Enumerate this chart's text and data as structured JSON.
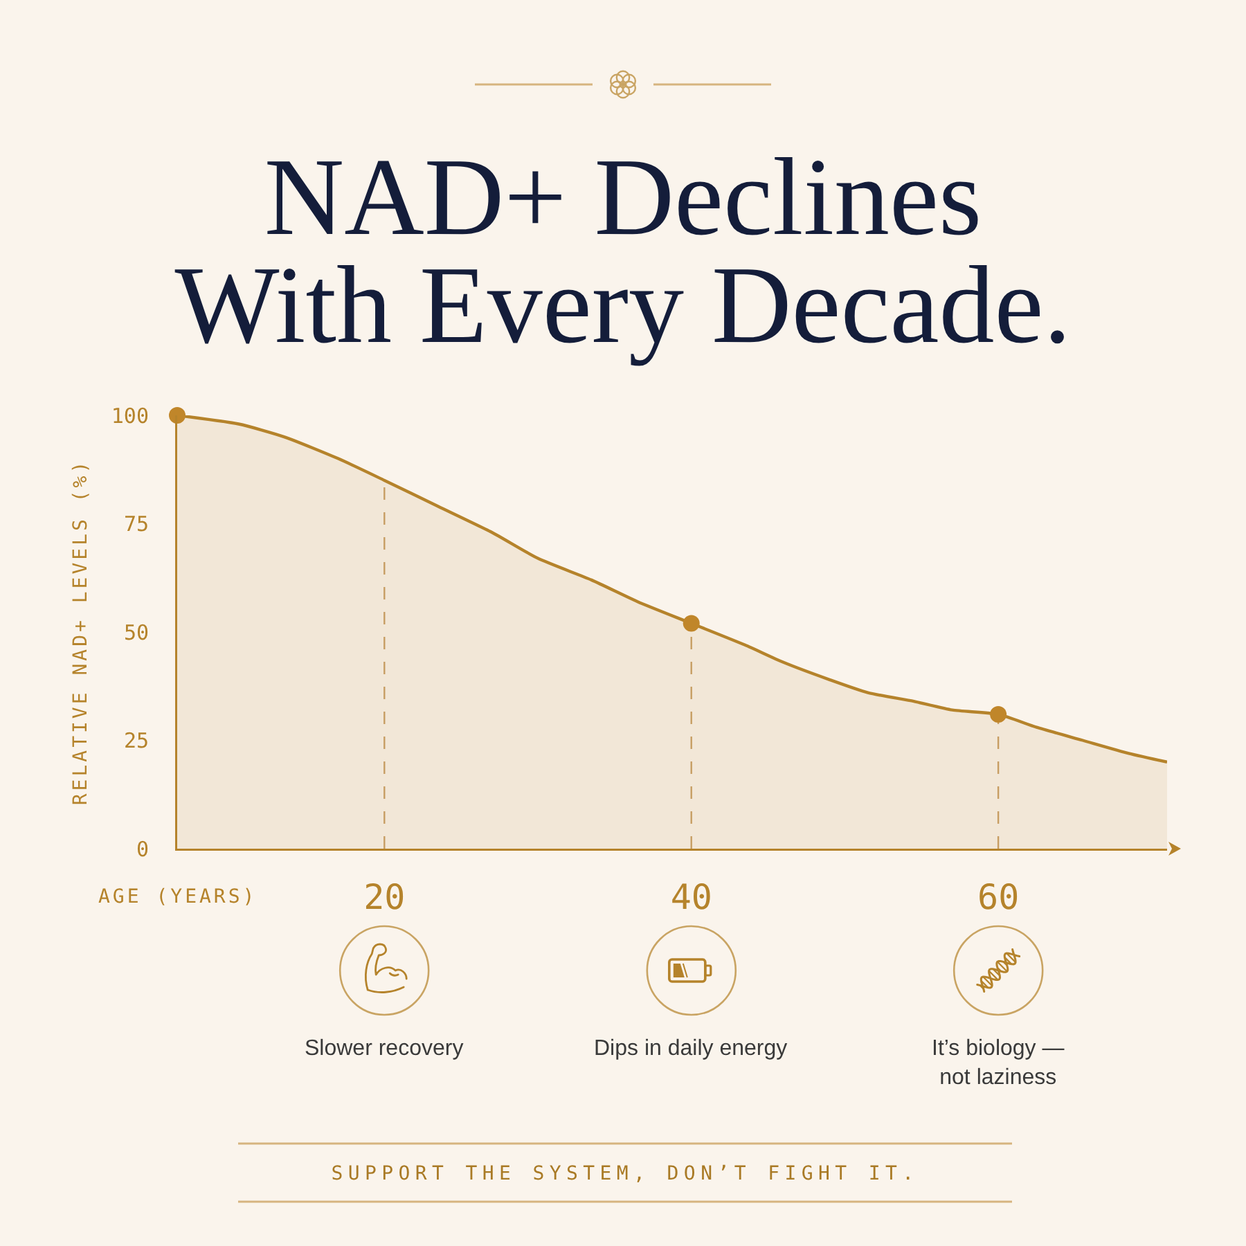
{
  "chart_data": {
    "type": "area",
    "title": "NAD+ Declines\nWith Every Decade.",
    "xlabel": "AGE (YEARS)",
    "ylabel": "RELATIVE NAD+ LEVELS (%)",
    "xlim": [
      6.5,
      71
    ],
    "xticks": [
      20,
      40,
      60
    ],
    "ylim": [
      0,
      100
    ],
    "yticks": [
      0,
      25,
      50,
      75,
      100
    ],
    "series": [
      {
        "color": "#b5832b",
        "marker": "none",
        "x": [
          6.5,
          10.5,
          13.5,
          17,
          20,
          23.5,
          27,
          30,
          33.5,
          36.5,
          40,
          43.5,
          46,
          49,
          51.5,
          54.5,
          57,
          60,
          62.5,
          65.5,
          68.5,
          71
        ],
        "values": [
          100,
          98,
          95,
          90,
          85,
          79,
          73,
          67,
          62,
          57,
          52,
          47,
          43,
          39,
          36,
          34,
          32,
          31,
          28,
          25,
          22,
          20
        ]
      },
      {
        "type": "scatter",
        "color": "#c0862a",
        "marker": "circle",
        "x": [
          6.5,
          40,
          60
        ],
        "values": [
          100,
          52,
          31
        ]
      }
    ],
    "ref_lines": [
      {
        "axis": "x",
        "value": 20,
        "color": "#c9a26a",
        "line_style": "dashed"
      },
      {
        "axis": "x",
        "value": 40,
        "color": "#c9a26a",
        "line_style": "dashed"
      },
      {
        "axis": "x",
        "value": 60,
        "color": "#c9a26a",
        "line_style": "dashed"
      }
    ],
    "annotations": [
      "Slower recovery",
      "Dips in daily energy",
      "It’s biology —\nnot laziness",
      "SUPPORT THE SYSTEM, DON’T FIGHT IT."
    ]
  }
}
